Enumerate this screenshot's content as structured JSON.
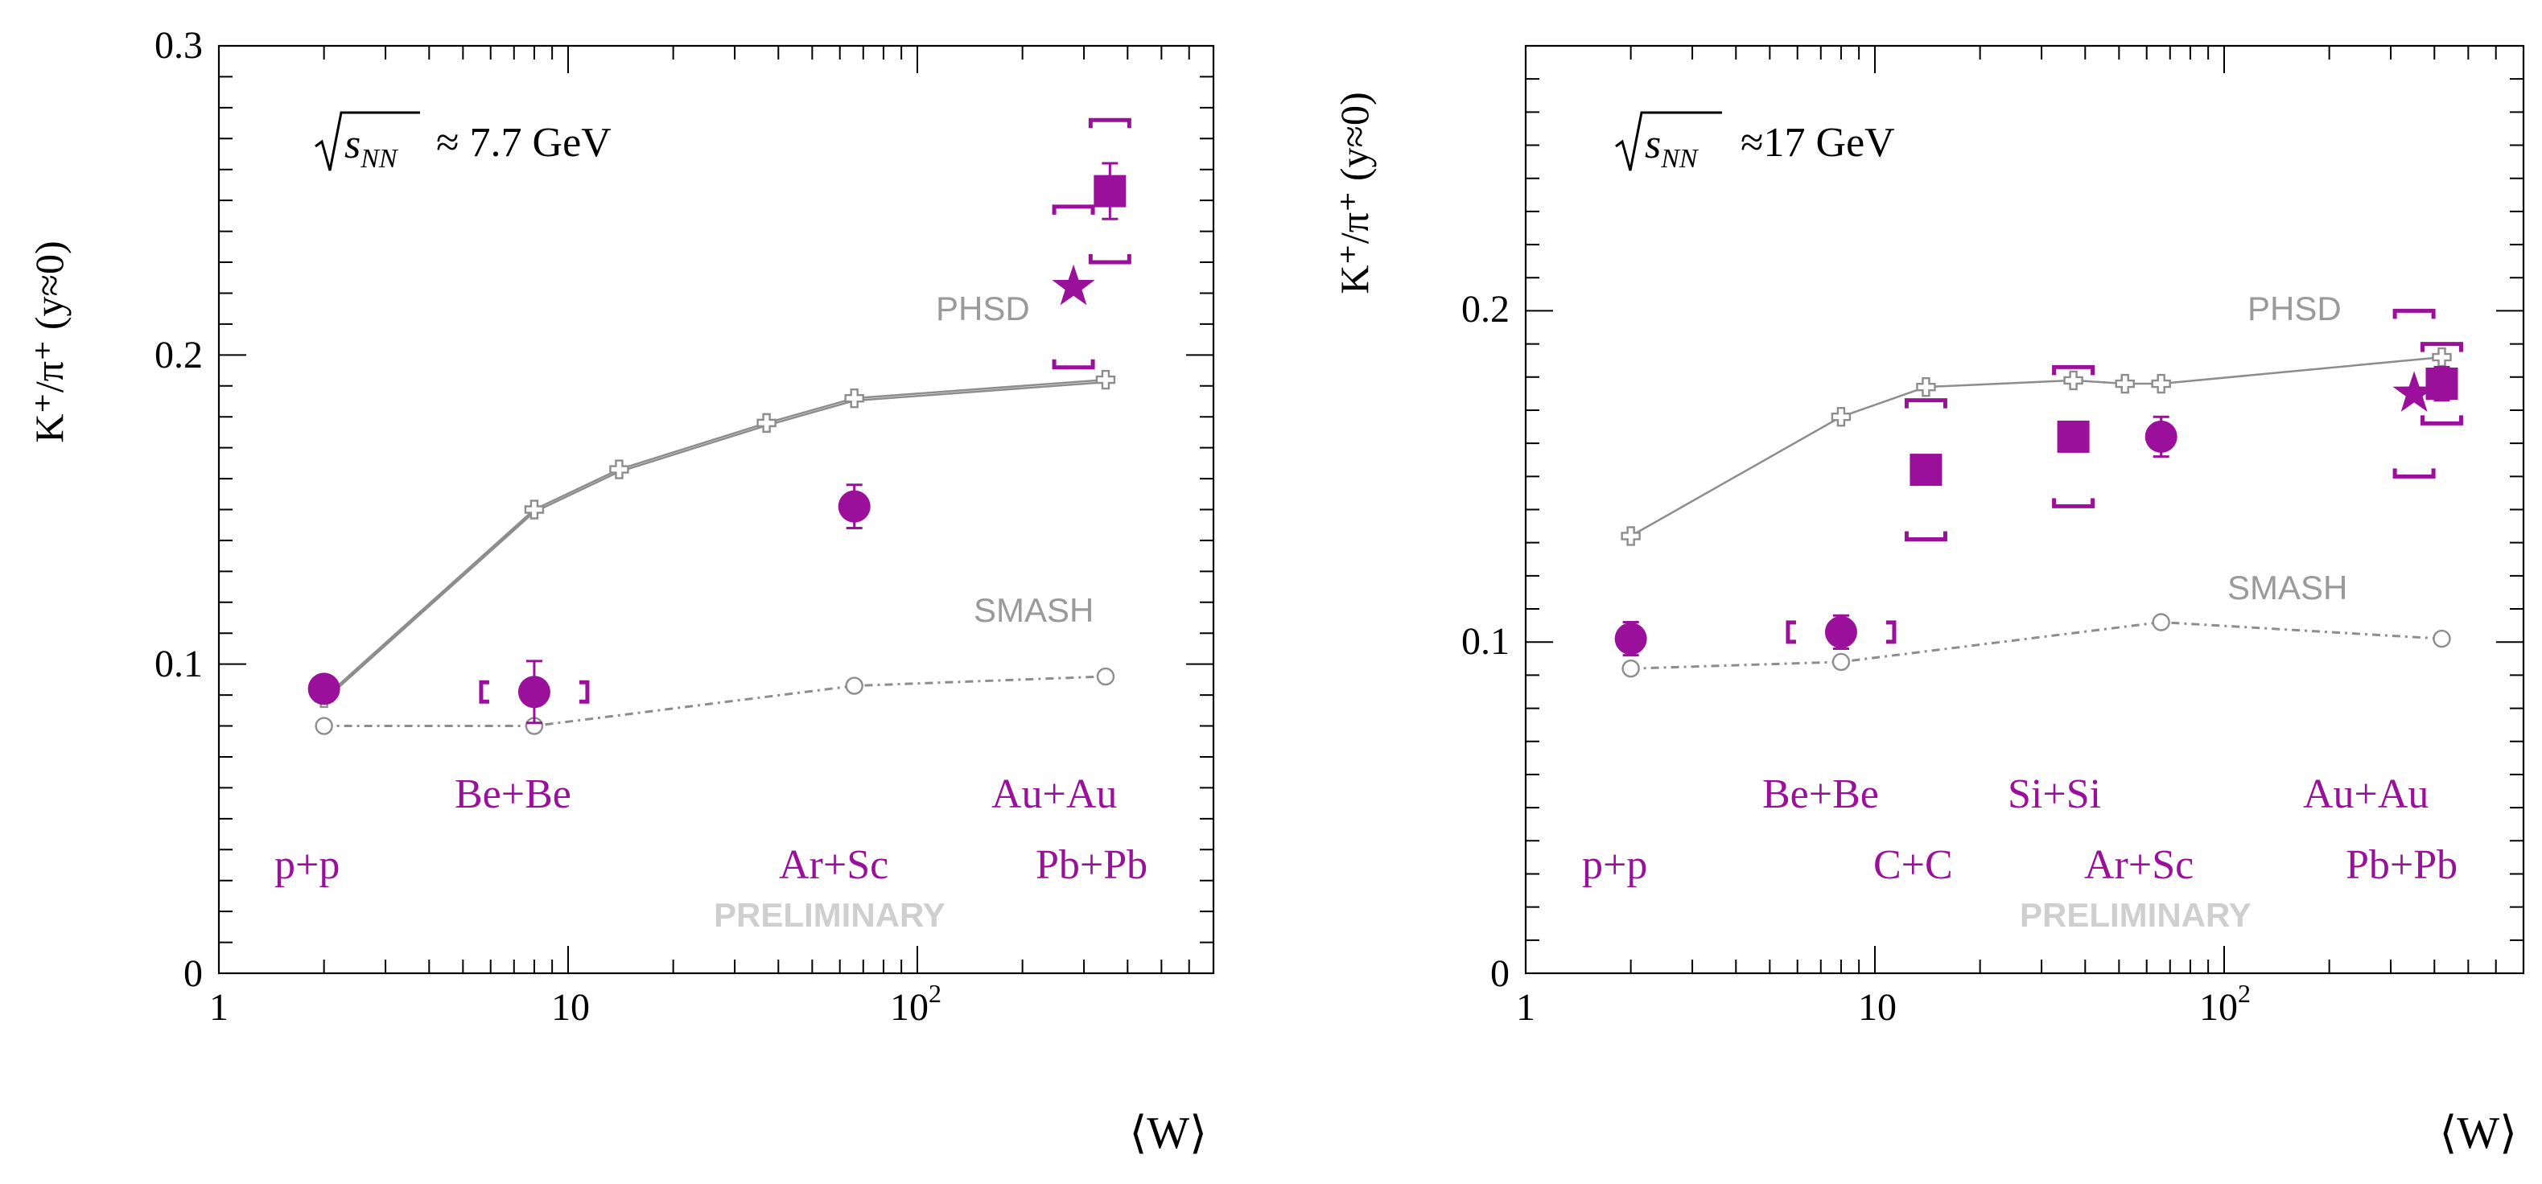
{
  "chart_data": [
    {
      "type": "scatter",
      "panel": "left",
      "energy_label": "≈ 7.7 GeV",
      "sqrt_label": "s",
      "sqrt_sub": "NN",
      "ylabel": "K⁺/π⁺ (y≈0)",
      "xlabel": "⟨W⟩",
      "xscale": "log",
      "xlim": [
        1,
        650
      ],
      "ylim": [
        0,
        0.3
      ],
      "y_ticks": [
        0,
        0.1,
        0.2,
        0.3
      ],
      "y_tick_labels": [
        "0",
        "0.1",
        "0.2",
        "0.3"
      ],
      "x_ticks": [
        1,
        10,
        100
      ],
      "x_tick_labels": [
        "1",
        "10",
        "10",
        "2"
      ],
      "models": [
        {
          "name": "PHSD",
          "style": "solid-cross",
          "x": [
            2,
            8,
            14,
            37,
            66,
            346
          ],
          "y": [
            0.089,
            0.15,
            0.163,
            0.178,
            0.186,
            0.192
          ]
        },
        {
          "name": "SMASH",
          "style": "dashdot-circle",
          "x": [
            2,
            8,
            66,
            346
          ],
          "y": [
            0.08,
            0.08,
            0.093,
            0.096
          ]
        }
      ],
      "data": [
        {
          "system": "p+p",
          "marker": "circle",
          "x": 2,
          "y": 0.092,
          "stat": 0.004
        },
        {
          "system": "Be+Be",
          "marker": "circle",
          "x": 8,
          "y": 0.091,
          "stat": 0.01,
          "sys": 0.003
        },
        {
          "system": "Ar+Sc",
          "marker": "circle",
          "x": 66,
          "y": 0.151,
          "stat": 0.007
        },
        {
          "system": "Au+Au",
          "marker": "star",
          "x": 280,
          "y": 0.222,
          "sys": 0.026
        },
        {
          "system": "Pb+Pb",
          "marker": "square",
          "x": 356,
          "y": 0.253,
          "stat": 0.009,
          "sys": 0.023
        }
      ],
      "system_labels": [
        "p+p",
        "Be+Be",
        "Ar+Sc",
        "Au+Au",
        "Pb+Pb"
      ],
      "model_labels": [
        "PHSD",
        "SMASH"
      ],
      "watermark": "PRELIMINARY"
    },
    {
      "type": "scatter",
      "panel": "right",
      "energy_label": "≈17 GeV",
      "sqrt_label": "s",
      "sqrt_sub": "NN",
      "ylabel": "K⁺/π⁺ (y≈0)",
      "xlabel": "⟨W⟩",
      "xscale": "log",
      "xlim": [
        1,
        650
      ],
      "ylim": [
        0,
        0.28
      ],
      "y_ticks": [
        0,
        0.1,
        0.2
      ],
      "y_tick_labels": [
        "0",
        "0.1",
        "0.2"
      ],
      "x_ticks": [
        1,
        10,
        100
      ],
      "x_tick_labels": [
        "1",
        "10",
        "10",
        "2"
      ],
      "models": [
        {
          "name": "PHSD",
          "style": "solid-cross",
          "x": [
            2,
            8,
            14,
            37,
            52,
            66,
            420
          ],
          "y": [
            0.132,
            0.168,
            0.177,
            0.179,
            0.178,
            0.178,
            0.186
          ]
        },
        {
          "name": "SMASH",
          "style": "dashdot-circle",
          "x": [
            2,
            8,
            66,
            420
          ],
          "y": [
            0.092,
            0.094,
            0.106,
            0.101
          ]
        }
      ],
      "data": [
        {
          "system": "p+p",
          "marker": "circle",
          "x": 2,
          "y": 0.101,
          "stat": 0.005
        },
        {
          "system": "Be+Be",
          "marker": "circle",
          "x": 8,
          "y": 0.103,
          "stat": 0.005,
          "sys": 0.003
        },
        {
          "system": "C+C",
          "marker": "square",
          "x": 14,
          "y": 0.152,
          "stat": 0.004,
          "sys": 0.021
        },
        {
          "system": "Si+Si",
          "marker": "square",
          "x": 37,
          "y": 0.162,
          "sys": 0.021
        },
        {
          "system": "Ar+Sc",
          "marker": "circle",
          "x": 66,
          "y": 0.162,
          "stat": 0.006
        },
        {
          "system": "Au+Au",
          "marker": "star",
          "x": 350,
          "y": 0.175,
          "sys": 0.025
        },
        {
          "system": "Pb+Pb",
          "marker": "square",
          "x": 420,
          "y": 0.178,
          "stat": 0.005,
          "sys": 0.012
        }
      ],
      "system_labels": [
        "p+p",
        "Be+Be",
        "C+C",
        "Si+Si",
        "Ar+Sc",
        "Au+Au",
        "Pb+Pb"
      ],
      "model_labels": [
        "PHSD",
        "SMASH"
      ],
      "watermark": "PRELIMINARY"
    }
  ]
}
